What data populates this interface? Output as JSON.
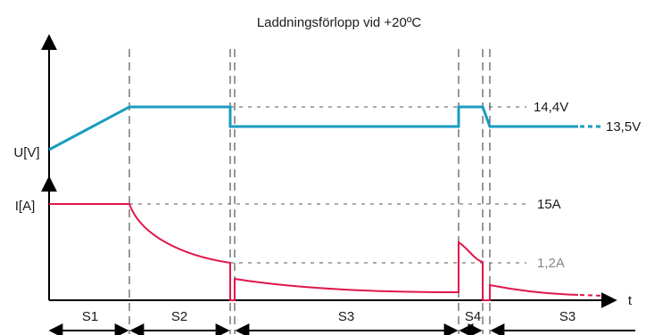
{
  "chart_data": {
    "type": "line",
    "title": "Laddningsförlopp vid +20ºC",
    "x_axis_label": "t",
    "y_labels": {
      "voltage": "U[V]",
      "current": "I[A]"
    },
    "value_labels": {
      "v_high": "14,4V",
      "v_float": "13,5V",
      "i_max": "15A",
      "i_low": "1,2A"
    },
    "stages": [
      "S1",
      "S2",
      "S3",
      "S4",
      "S3"
    ],
    "colors": {
      "voltage": "#1a9cc0",
      "current": "#e0174a",
      "axis": "#000000",
      "guide": "#555555",
      "muted_label": "#888888"
    },
    "series": [
      {
        "quantity": "voltage",
        "unit": "V",
        "points_note": "rises in S1 to 14.4, holds 14.4 in S2, drops to 13.5 in S3, returns to 14.4 in S4, back to 13.5 in S3"
      },
      {
        "quantity": "current",
        "unit": "A",
        "points_note": "constant 15 in S1, decays to about 1.2 in S2, low tail in S3, pulse in S4, low tail in S3"
      }
    ]
  }
}
